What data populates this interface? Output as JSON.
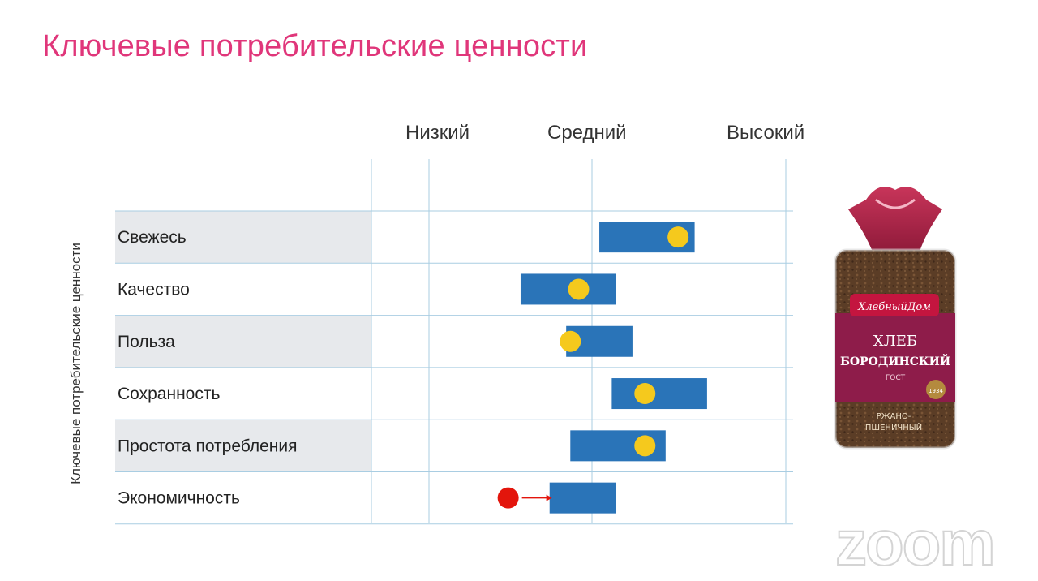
{
  "slide": {
    "title": "Ключевые потребительские ценности"
  },
  "chart_data": {
    "type": "range-bar",
    "title": "",
    "ylabel": "Ключевые потребительские ценности",
    "levels": [
      "Низкий",
      "Средний",
      "Высокий"
    ],
    "x_range": [
      0,
      100
    ],
    "grid": true,
    "colors": {
      "bar": "#2a74b8",
      "marker": "#f5c91d",
      "highlight_marker": "#e3150c",
      "arrow": "#e3150c",
      "row_band": "#e7e9ec",
      "grid": "#a9cde2"
    },
    "categories": [
      "Свежесь",
      "Качество",
      "Польза",
      "Сохранность",
      "Простота потребления",
      "Экономичность"
    ],
    "series": [
      {
        "values": [
          {
            "low": 55,
            "high": 78,
            "marker": 74
          },
          {
            "low": 36,
            "high": 59,
            "marker": 50
          },
          {
            "low": 47,
            "high": 63,
            "marker": 48
          },
          {
            "low": 58,
            "high": 81,
            "marker": 66
          },
          {
            "low": 48,
            "high": 71,
            "marker": 66
          },
          {
            "low": 43,
            "high": 59,
            "marker": 33
          }
        ]
      }
    ],
    "annotations": [
      {
        "category": "Экономичность",
        "type": "arrow",
        "from": 33,
        "to": 42
      }
    ]
  },
  "product": {
    "brand": "ХлебныйДом",
    "name": "ХЛЕБ",
    "variety": "БОРОДИНСКИЙ",
    "standard": "ГОСТ",
    "subtitle_1": "РЖАНО-",
    "subtitle_2": "ПШЕНИЧНЫЙ",
    "year": "1934"
  },
  "watermark": {
    "text": "zoom"
  }
}
